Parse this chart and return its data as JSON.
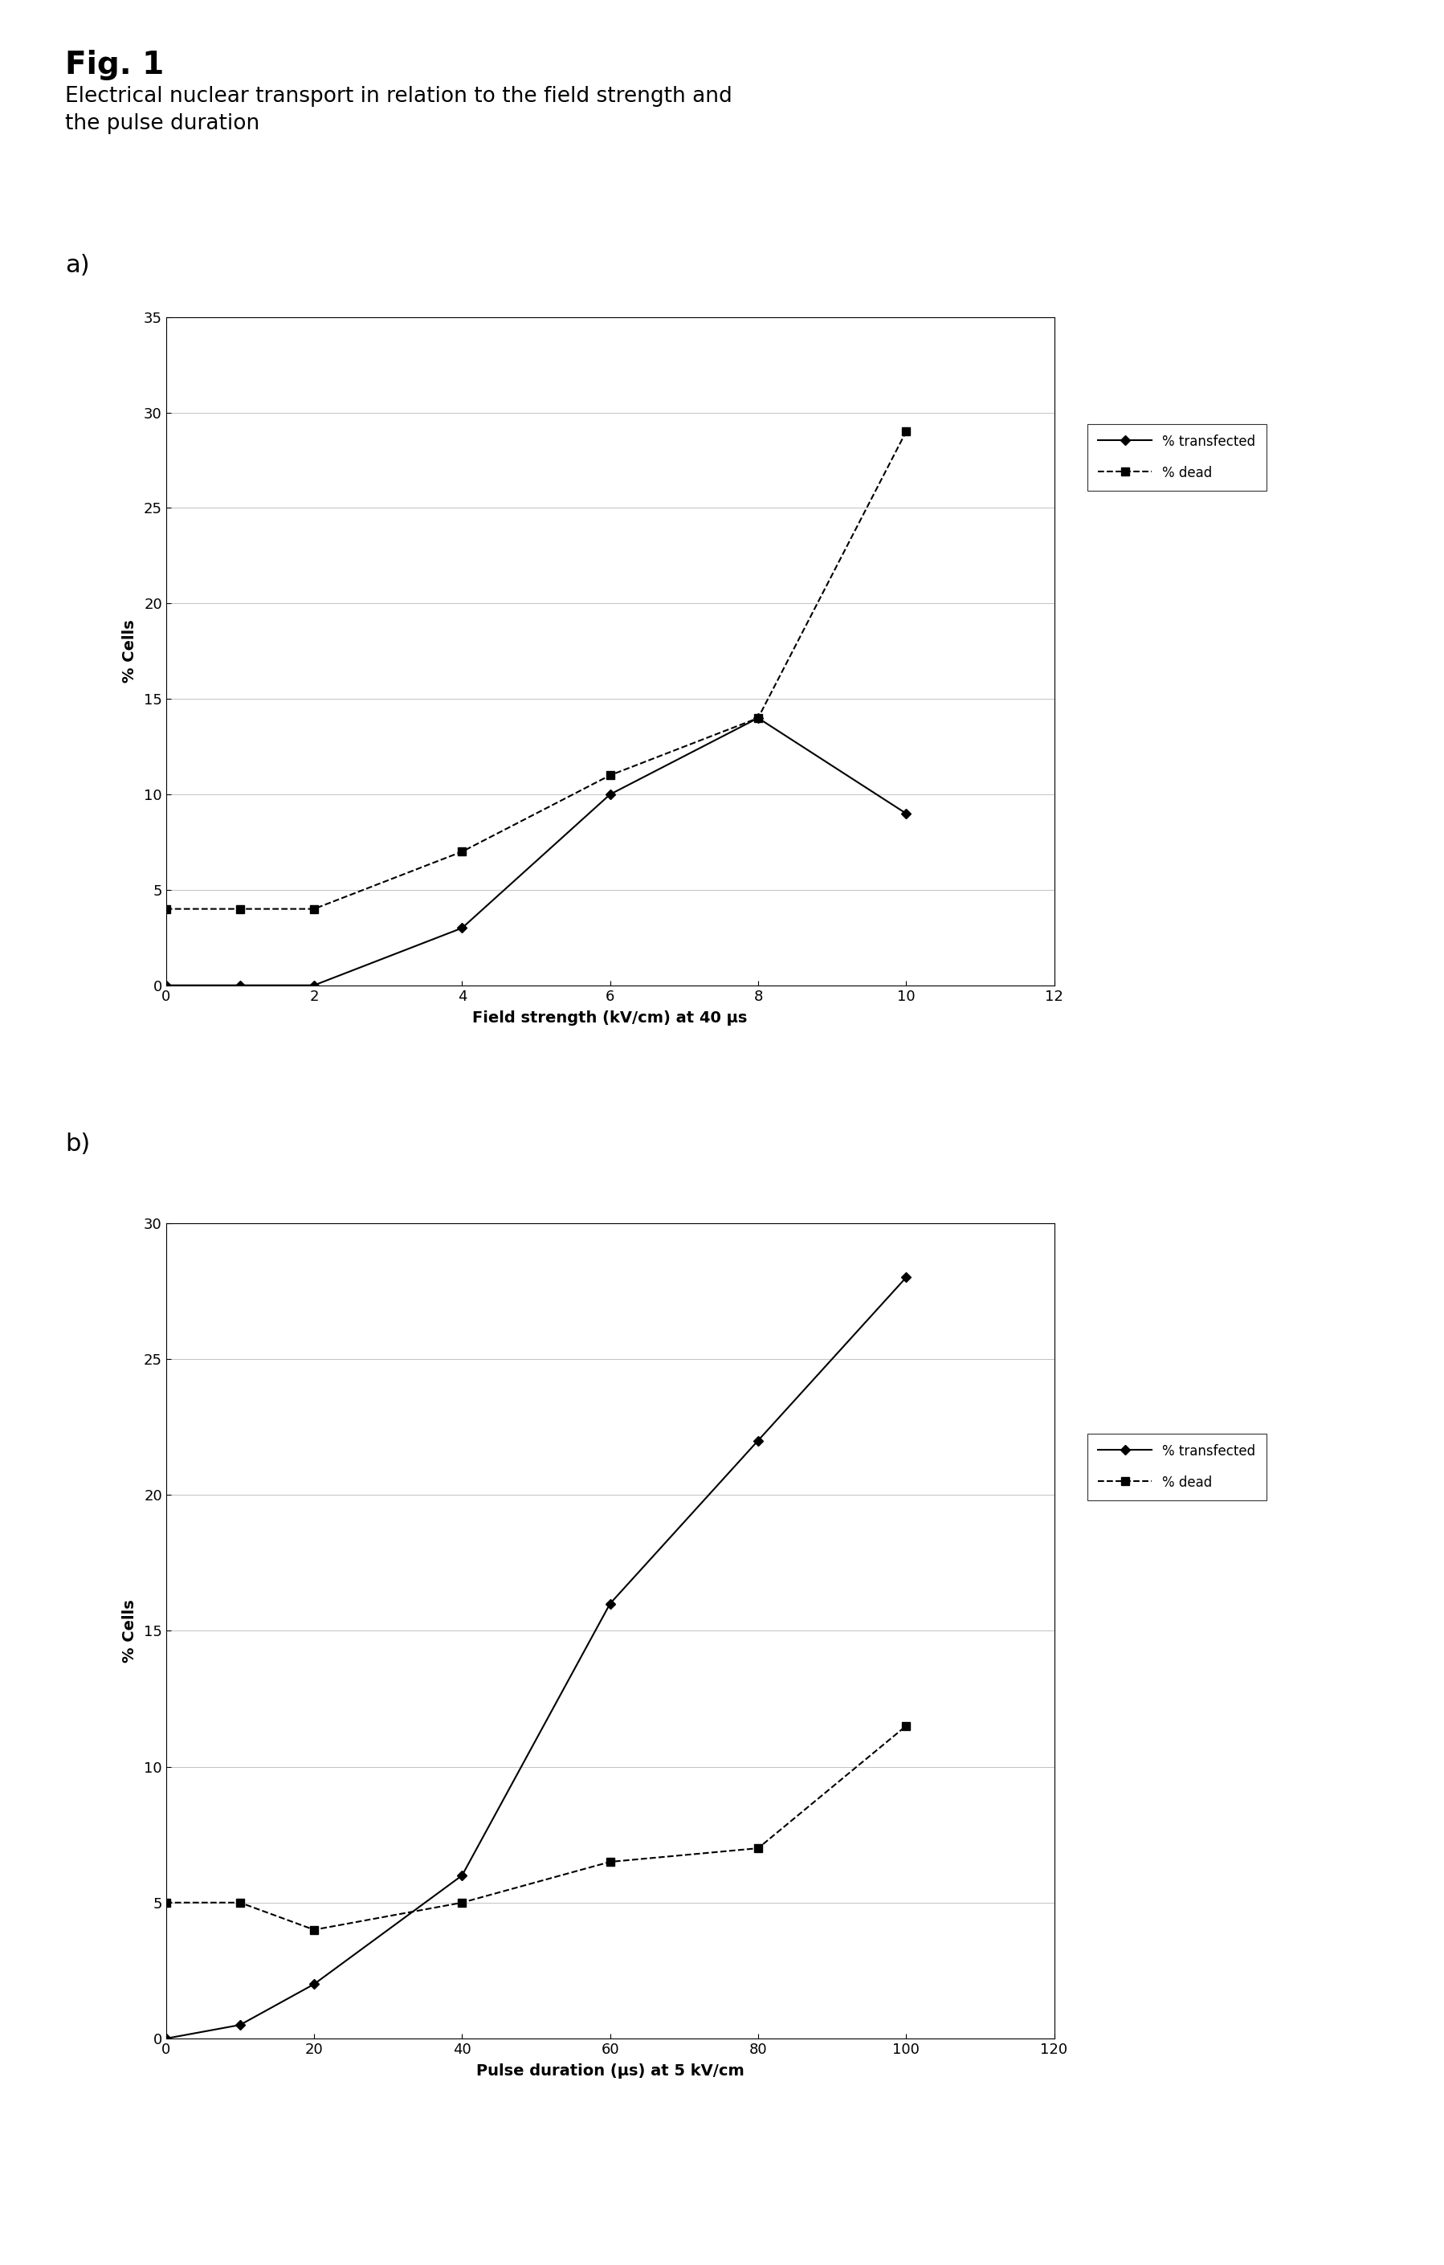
{
  "fig_label": "Fig. 1",
  "fig_title_line1": "Electrical nuclear transport in relation to the field strength and",
  "fig_title_line2": "the pulse duration",
  "panel_a": {
    "label": "a)",
    "xlabel": "Field strength (kV/cm) at 40 μs",
    "ylabel": "% Cells",
    "xlim": [
      0,
      12
    ],
    "ylim": [
      0,
      35
    ],
    "xticks": [
      0,
      2,
      4,
      6,
      8,
      10,
      12
    ],
    "yticks": [
      0,
      5,
      10,
      15,
      20,
      25,
      30,
      35
    ],
    "transfected_x": [
      0,
      1,
      2,
      4,
      6,
      8,
      10
    ],
    "transfected_y": [
      0,
      0,
      0,
      3,
      10,
      14,
      9
    ],
    "dead_x": [
      0,
      1,
      2,
      4,
      6,
      8,
      10
    ],
    "dead_y": [
      4,
      4,
      4,
      7,
      11,
      14,
      29
    ],
    "legend_transfected": "% transfected",
    "legend_dead": "% dead"
  },
  "panel_b": {
    "label": "b)",
    "xlabel": "Pulse duration (μs) at 5 kV/cm",
    "ylabel": "% Cells",
    "xlim": [
      0,
      120
    ],
    "ylim": [
      0,
      30
    ],
    "xticks": [
      0,
      20,
      40,
      60,
      80,
      100,
      120
    ],
    "yticks": [
      0,
      5,
      10,
      15,
      20,
      25,
      30
    ],
    "transfected_x": [
      0,
      10,
      20,
      40,
      60,
      80,
      100
    ],
    "transfected_y": [
      0,
      0.5,
      2,
      6,
      16,
      22,
      28
    ],
    "dead_x": [
      0,
      10,
      20,
      40,
      60,
      80,
      100
    ],
    "dead_y": [
      5,
      5,
      4,
      5,
      6.5,
      7,
      11.5
    ],
    "legend_transfected": "% transfected",
    "legend_dead": "% dead"
  },
  "background_color": "#ffffff",
  "line_color": "#000000"
}
